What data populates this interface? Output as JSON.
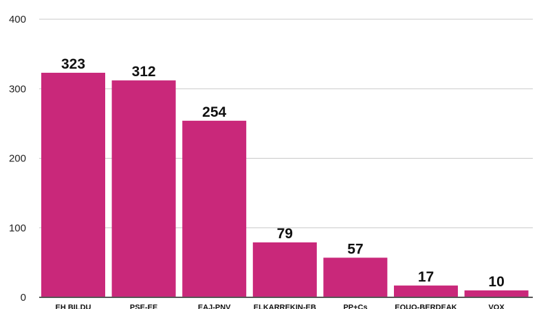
{
  "chart_data": {
    "type": "bar",
    "categories": [
      "EH BILDU",
      "PSE-EE",
      "EAJ-PNV",
      "ELKARREKIN-EB",
      "PP+Cs",
      "EQUO-BERDEAK",
      "VOX"
    ],
    "values": [
      323,
      312,
      254,
      79,
      57,
      17,
      10
    ],
    "title": "",
    "xlabel": "",
    "ylabel": "",
    "ylim": [
      0,
      400
    ],
    "yticks": [
      0,
      100,
      200,
      300,
      400
    ],
    "grid": true,
    "bar_color": "#c9287a",
    "data_labels": true
  }
}
